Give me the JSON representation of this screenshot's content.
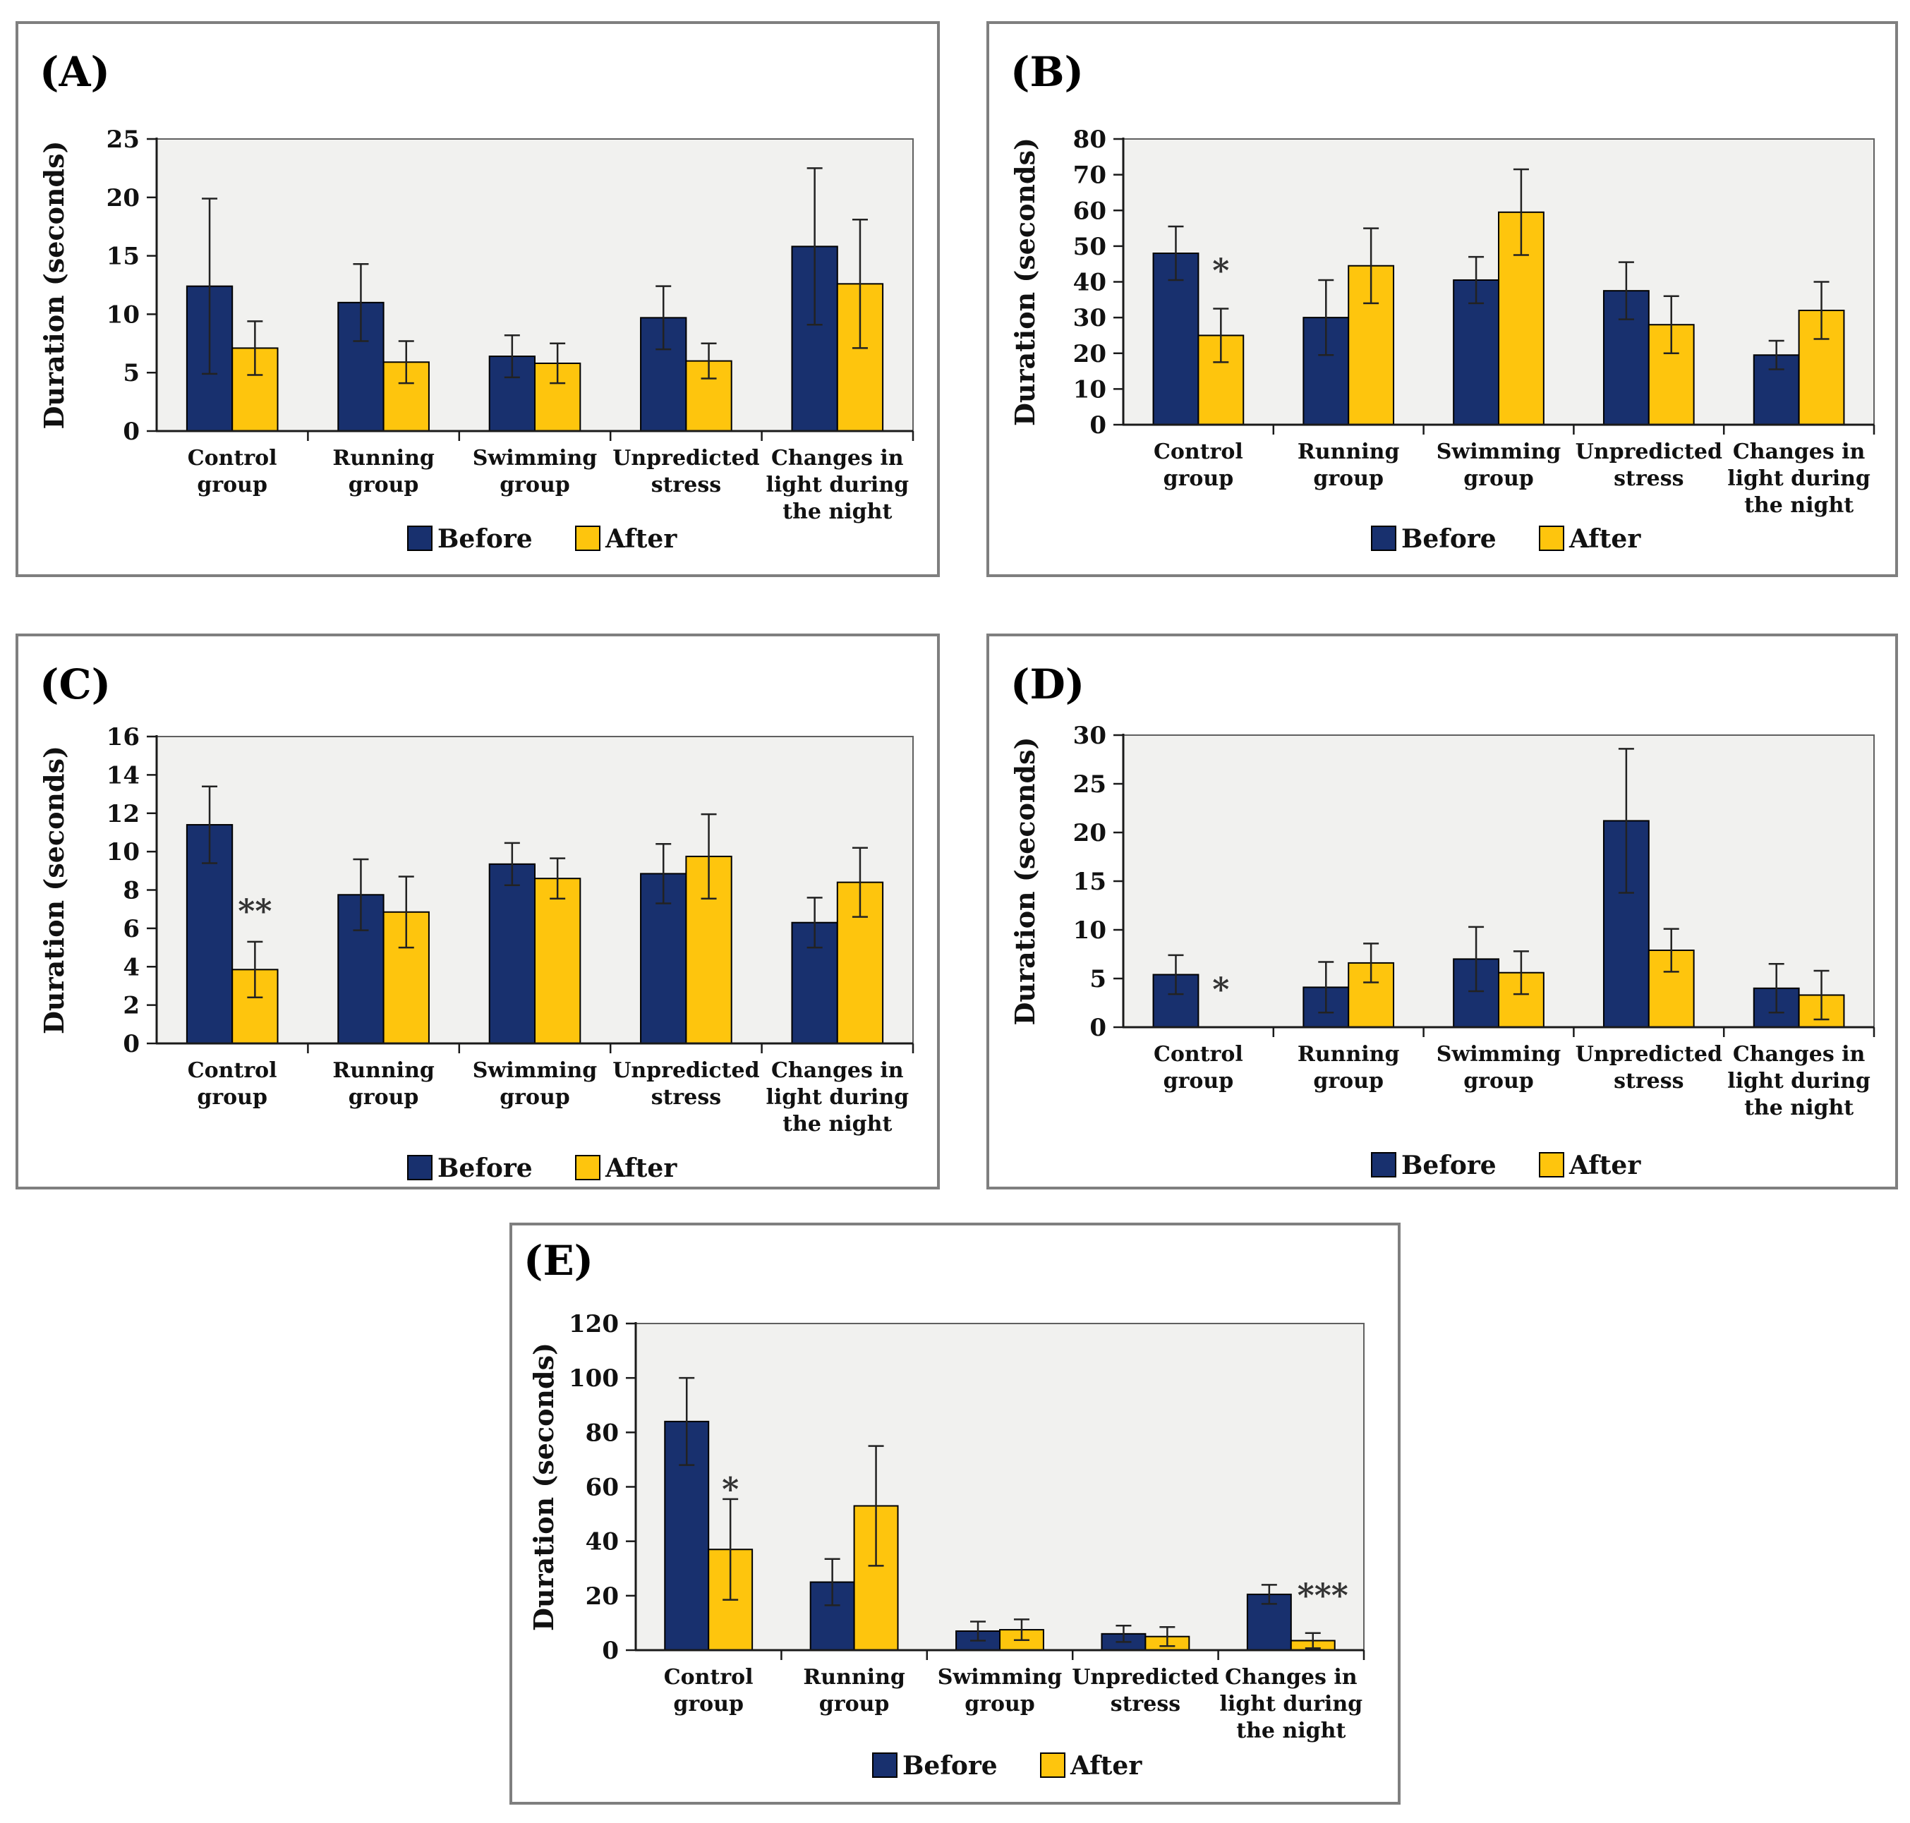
{
  "figure": {
    "background": "#ffffff",
    "panel_border_color": "#7f7f7f",
    "plot_background": "#f1f1ef",
    "plot_border_color": "#606060",
    "axis_color": "#1a1a1a",
    "error_bar_color": "#222222",
    "annotation_color": "#333333",
    "text_color": "#111111",
    "bar_colors": {
      "before": "#18306e",
      "after": "#fec50d"
    }
  },
  "legend": {
    "before_label": "Before",
    "after_label": "After"
  },
  "ylabel": "Duration (seconds)",
  "category_lines": [
    [
      "Control",
      "group"
    ],
    [
      "Running",
      "group"
    ],
    [
      "Swimming",
      "group"
    ],
    [
      "Unpredicted",
      "stress"
    ],
    [
      "Changes in",
      "light during",
      "the night"
    ]
  ],
  "chart_data": [
    {
      "type": "bar",
      "panel": "(A)",
      "title": "",
      "xlabel": "",
      "ylabel": "Duration (seconds)",
      "ylim": [
        0,
        25
      ],
      "ytick_step": 5,
      "grid": false,
      "legend_position": "bottom",
      "categories": [
        "Control group",
        "Running group",
        "Swimming group",
        "Unpredicted stress",
        "Changes in light during the night"
      ],
      "series": [
        {
          "name": "Before",
          "values": [
            12.4,
            11.0,
            6.4,
            9.7,
            15.8
          ],
          "errors": [
            7.5,
            3.3,
            1.8,
            2.7,
            6.7
          ]
        },
        {
          "name": "After",
          "values": [
            7.1,
            5.9,
            5.8,
            6.0,
            12.6
          ],
          "errors": [
            2.3,
            1.8,
            1.7,
            1.5,
            5.5
          ]
        }
      ],
      "annotations": []
    },
    {
      "type": "bar",
      "panel": "(B)",
      "title": "",
      "xlabel": "",
      "ylabel": "Duration (seconds)",
      "ylim": [
        0,
        80
      ],
      "ytick_step": 10,
      "grid": false,
      "legend_position": "bottom",
      "categories": [
        "Control group",
        "Running group",
        "Swimming group",
        "Unpredicted stress",
        "Changes in light during the night"
      ],
      "series": [
        {
          "name": "Before",
          "values": [
            48.0,
            30.0,
            40.5,
            37.5,
            19.5
          ],
          "errors": [
            7.5,
            10.5,
            6.5,
            8.0,
            4.0
          ]
        },
        {
          "name": "After",
          "values": [
            25.0,
            44.5,
            59.5,
            28.0,
            32.0
          ],
          "errors": [
            7.5,
            10.5,
            12.0,
            8.0,
            8.0
          ]
        }
      ],
      "annotations": [
        {
          "text": "*",
          "category": 0,
          "series": "After",
          "y": 40
        }
      ]
    },
    {
      "type": "bar",
      "panel": "(C)",
      "title": "",
      "xlabel": "",
      "ylabel": "Duration (seconds)",
      "ylim": [
        0,
        16
      ],
      "ytick_step": 2,
      "grid": false,
      "legend_position": "bottom",
      "categories": [
        "Control group",
        "Running group",
        "Swimming group",
        "Unpredicted stress",
        "Changes in light during the night"
      ],
      "series": [
        {
          "name": "Before",
          "values": [
            11.4,
            7.75,
            9.35,
            8.85,
            6.3
          ],
          "errors": [
            2.0,
            1.85,
            1.1,
            1.55,
            1.3
          ]
        },
        {
          "name": "After",
          "values": [
            3.85,
            6.85,
            8.6,
            9.75,
            8.4
          ],
          "errors": [
            1.45,
            1.85,
            1.05,
            2.2,
            1.8
          ]
        }
      ],
      "annotations": [
        {
          "text": "**",
          "category": 0,
          "series": "After",
          "y": 6.3
        }
      ]
    },
    {
      "type": "bar",
      "panel": "(D)",
      "title": "",
      "xlabel": "",
      "ylabel": "Duration (seconds)",
      "ylim": [
        0,
        30
      ],
      "ytick_step": 5,
      "grid": false,
      "legend_position": "bottom",
      "categories": [
        "Control group",
        "Running group",
        "Swimming group",
        "Unpredicted stress",
        "Changes in light during the night"
      ],
      "series": [
        {
          "name": "Before",
          "values": [
            5.4,
            4.1,
            7.0,
            21.2,
            4.0
          ],
          "errors": [
            2.0,
            2.6,
            3.3,
            7.4,
            2.5
          ]
        },
        {
          "name": "After",
          "values": [
            0,
            6.6,
            5.6,
            7.9,
            3.3
          ],
          "errors": [
            0,
            2.0,
            2.2,
            2.2,
            2.5
          ]
        }
      ],
      "annotations": [
        {
          "text": "*",
          "category": 0,
          "series": "After",
          "y": 2.7
        }
      ]
    },
    {
      "type": "bar",
      "panel": "(E)",
      "title": "",
      "xlabel": "",
      "ylabel": "Duration (seconds)",
      "ylim": [
        0,
        120
      ],
      "ytick_step": 20,
      "grid": false,
      "legend_position": "bottom",
      "categories": [
        "Control group",
        "Running group",
        "Swimming group",
        "Unpredicted stress",
        "Changes in light during the night"
      ],
      "series": [
        {
          "name": "Before",
          "values": [
            84.0,
            25.0,
            7.0,
            6.0,
            20.5
          ],
          "errors": [
            16.0,
            8.5,
            3.5,
            3.0,
            3.5
          ]
        },
        {
          "name": "After",
          "values": [
            37.0,
            53.0,
            7.5,
            5.0,
            3.5
          ],
          "errors": [
            18.5,
            22.0,
            3.8,
            3.5,
            2.8
          ]
        }
      ],
      "annotations": [
        {
          "text": "*",
          "category": 0,
          "series": "After",
          "y": 55
        },
        {
          "text": "***",
          "category": 4,
          "series": "After",
          "y": 16,
          "dx": 14
        }
      ]
    }
  ]
}
